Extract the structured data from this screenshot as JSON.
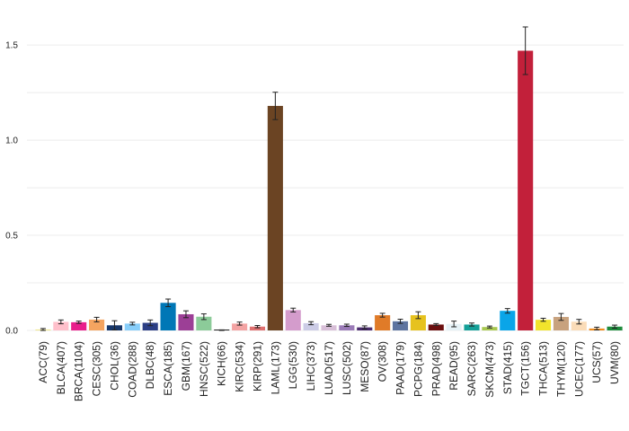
{
  "chart_data": {
    "type": "bar",
    "title": "",
    "xlabel": "",
    "ylabel": "",
    "ylim": [
      0,
      1.68
    ],
    "yticks": [
      0.0,
      0.5,
      1.0,
      1.5
    ],
    "ytick_labels": [
      "0.0",
      "0.5",
      "1.0",
      "1.5"
    ],
    "grid": "horizontal",
    "legend": "none",
    "error_bars": true,
    "categories": [
      "ACC(79)",
      "BLCA(407)",
      "BRCA(1104)",
      "CESC(305)",
      "CHOL(36)",
      "COAD(288)",
      "DLBC(48)",
      "ESCA(185)",
      "GBM(167)",
      "HNSC(522)",
      "KICH(66)",
      "KIRC(534)",
      "KIRP(291)",
      "LAML(173)",
      "LGG(530)",
      "LIHC(373)",
      "LUAD(517)",
      "LUSC(502)",
      "MESO(87)",
      "OV(308)",
      "PAAD(179)",
      "PCPG(184)",
      "PRAD(498)",
      "READ(95)",
      "SARC(263)",
      "SKCM(473)",
      "STAD(415)",
      "TGCT(156)",
      "THCA(513)",
      "THYM(120)",
      "UCEC(177)",
      "UCS(57)",
      "UVM(80)"
    ],
    "values": [
      0.005,
      0.045,
      0.043,
      0.057,
      0.027,
      0.036,
      0.04,
      0.145,
      0.085,
      0.072,
      0.001,
      0.036,
      0.02,
      1.18,
      0.107,
      0.038,
      0.027,
      0.027,
      0.016,
      0.08,
      0.048,
      0.08,
      0.031,
      0.034,
      0.031,
      0.018,
      0.103,
      1.47,
      0.056,
      0.071,
      0.046,
      0.01,
      0.02
    ],
    "errors": [
      0.005,
      0.01,
      0.006,
      0.012,
      0.024,
      0.007,
      0.015,
      0.02,
      0.018,
      0.015,
      0.002,
      0.008,
      0.006,
      0.072,
      0.01,
      0.008,
      0.005,
      0.006,
      0.008,
      0.01,
      0.011,
      0.018,
      0.005,
      0.015,
      0.008,
      0.005,
      0.012,
      0.125,
      0.008,
      0.018,
      0.012,
      0.007,
      0.008
    ],
    "colors": [
      "#f0e68c",
      "#ffc0cb",
      "#e91e8c",
      "#f4a460",
      "#17376b",
      "#87cefa",
      "#2b3e85",
      "#0077b6",
      "#9c3f96",
      "#8ccb99",
      "#1f1f1f",
      "#f4a3a3",
      "#e07070",
      "#6b4423",
      "#d49ccc",
      "#cccce6",
      "#d8bfd8",
      "#9b7bb8",
      "#4b2c6e",
      "#e07b28",
      "#5e74a0",
      "#e6c21e",
      "#6b0f0f",
      "#e6f2f7",
      "#14a098",
      "#a8c850",
      "#0aa5e8",
      "#c2203a",
      "#f2e42c",
      "#c8a27e",
      "#fbdcb8",
      "#f08c1c",
      "#1e8a3c"
    ]
  }
}
